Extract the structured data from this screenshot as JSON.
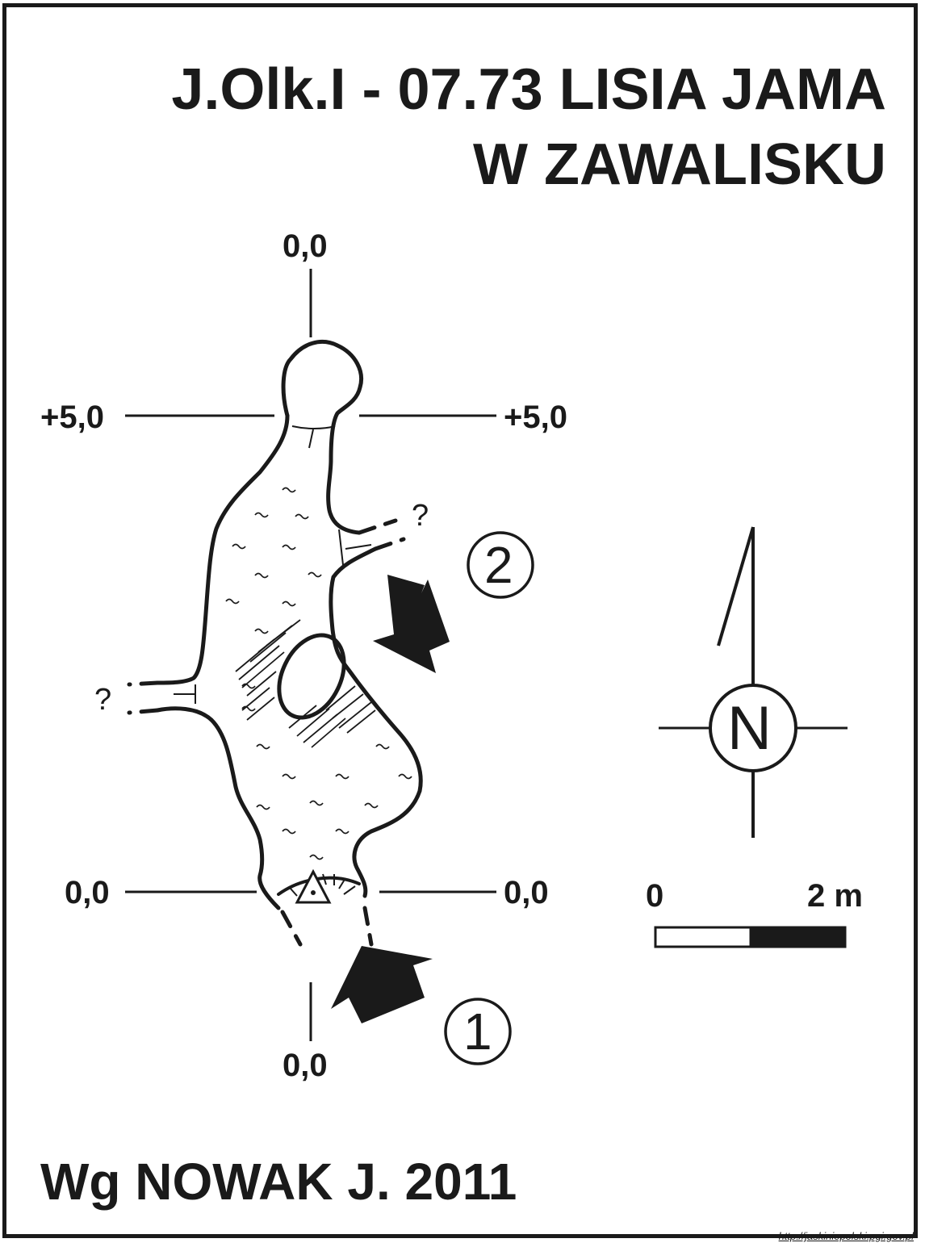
{
  "title": {
    "line1": "J.Olk.I - 07.73  LISIA JAMA",
    "line2": "W ZAWALISKU"
  },
  "section_labels": {
    "top": "0,0",
    "left_upper": "+5,0",
    "right_upper": "+5,0",
    "left_lower": "0,0",
    "right_lower": "0,0",
    "bottom": "0,0"
  },
  "unknown_marks": {
    "east": "?",
    "west": "?"
  },
  "entrances": {
    "entrance_1": "1",
    "entrance_2": "2"
  },
  "north_arrow": {
    "label": "N"
  },
  "scale_bar": {
    "start_label": "0",
    "end_label": "2 m"
  },
  "author": "Wg NOWAK J. 2011",
  "source_url": "http://jaskiniepolski.pgi.gov.pl",
  "colors": {
    "ink": "#1a1a1a",
    "paper": "#ffffff"
  }
}
